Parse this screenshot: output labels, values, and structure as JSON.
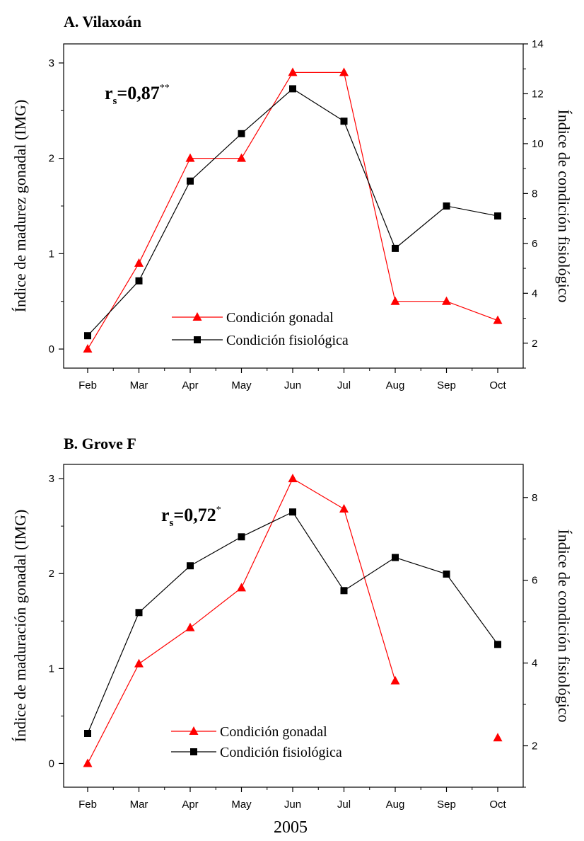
{
  "figure": {
    "xlabel": "2005"
  },
  "colors": {
    "gonadal": "#ff0000",
    "fisiologica": "#000000",
    "axis": "#000000"
  },
  "chart_data": [
    {
      "type": "line",
      "title": "A. Vilaxoán",
      "stat": {
        "label": "r",
        "sub": "s",
        "value": "=0,87",
        "sup": "**"
      },
      "categories": [
        "Feb",
        "Mar",
        "Apr",
        "May",
        "Jun",
        "Jul",
        "Aug",
        "Sep",
        "Oct"
      ],
      "ylabel_left": "Índice de madurez gonadal (IMG)",
      "ylabel_right": "Índice de condición fisiológico",
      "ylim_left": [
        -0.2,
        3.2
      ],
      "ylim_right": [
        1,
        14
      ],
      "yticks_left": [
        "0",
        "1",
        "2",
        "3"
      ],
      "yticks_right": [
        "2",
        "4",
        "6",
        "8",
        "10",
        "12",
        "14"
      ],
      "legend": "inside-lower-center",
      "series": [
        {
          "name": "Condición gonadal",
          "axis": "left",
          "marker": "triangle",
          "color": "#ff0000",
          "values": [
            0,
            0.9,
            2.0,
            2.0,
            2.9,
            2.9,
            0.5,
            0.5,
            0.3
          ]
        },
        {
          "name": "Condición fisiológica",
          "axis": "right",
          "marker": "square",
          "color": "#000000",
          "values": [
            2.3,
            4.5,
            8.5,
            10.4,
            12.2,
            10.9,
            5.8,
            7.5,
            7.1
          ]
        }
      ]
    },
    {
      "type": "line",
      "title": "B. Grove F",
      "stat": {
        "label": "r",
        "sub": "s",
        "value": "=0,72",
        "sup": "*"
      },
      "categories": [
        "Feb",
        "Mar",
        "Apr",
        "May",
        "Jun",
        "Jul",
        "Aug",
        "Sep",
        "Oct"
      ],
      "ylabel_left": "Índice de maduración gonadal (IMG)",
      "ylabel_right": "Índice de condición fisiológico",
      "ylim_left": [
        -0.25,
        3.15
      ],
      "ylim_right": [
        1,
        8.8
      ],
      "yticks_left": [
        "0",
        "1",
        "2",
        "3"
      ],
      "yticks_right": [
        "2",
        "4",
        "6",
        "8"
      ],
      "legend": "inside-lower-center",
      "series": [
        {
          "name": "Condición gonadal",
          "axis": "left",
          "marker": "triangle",
          "color": "#ff0000",
          "values": [
            0,
            1.05,
            1.43,
            1.85,
            3.0,
            2.68,
            0.87,
            null,
            0.27
          ]
        },
        {
          "name": "Condición fisiológica",
          "axis": "right",
          "marker": "square",
          "color": "#000000",
          "values": [
            2.3,
            5.22,
            6.35,
            7.05,
            7.65,
            5.75,
            6.55,
            6.15,
            4.45
          ]
        }
      ]
    }
  ]
}
